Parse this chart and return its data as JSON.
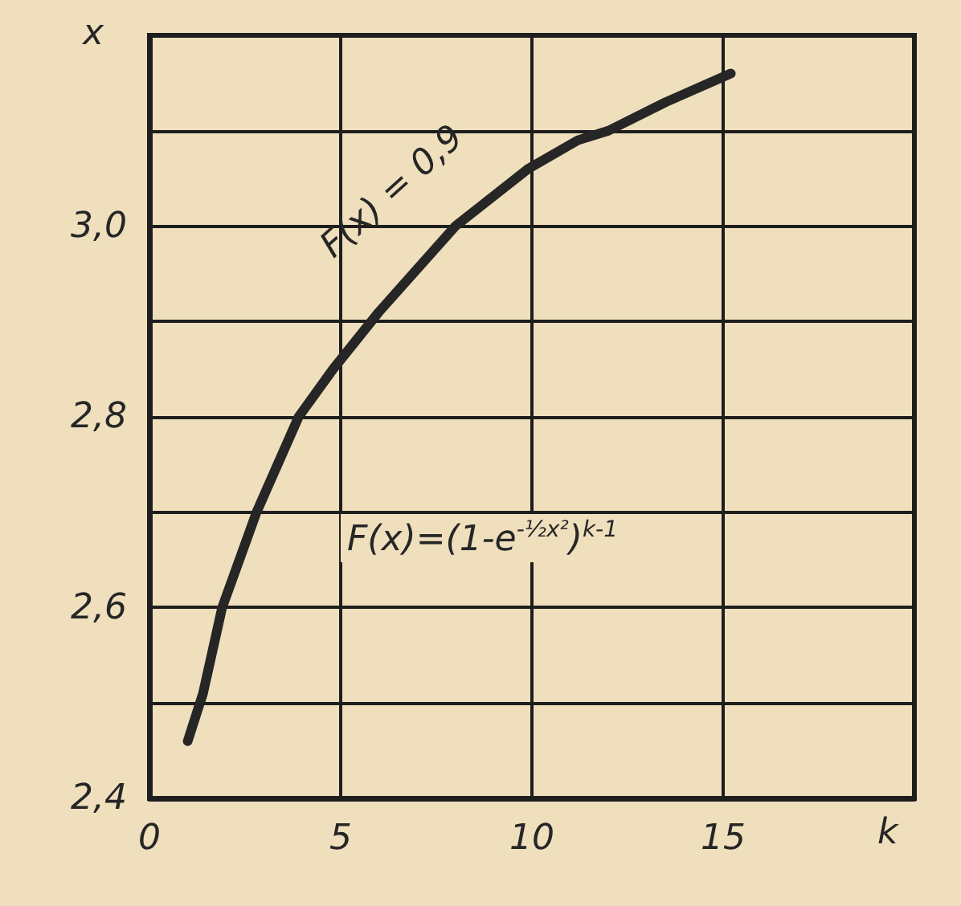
{
  "chart_data": {
    "type": "line",
    "xlabel": "k",
    "ylabel": "x",
    "x": [
      1.0,
      1.4,
      1.9,
      2.8,
      3.9,
      4.8,
      6.0,
      8.0,
      9.9,
      11.2,
      12.0,
      13.5,
      15.2
    ],
    "series": [
      {
        "color": "#262626",
        "values": [
          2.46,
          2.51,
          2.6,
          2.7,
          2.8,
          2.85,
          2.91,
          3.0,
          3.06,
          3.09,
          3.1,
          3.13,
          3.16
        ]
      }
    ],
    "xlim": [
      0,
      20
    ],
    "xticks": [
      0,
      5,
      10,
      15
    ],
    "ylim": [
      2.4,
      3.2
    ],
    "yticks": [
      {
        "value": 2.4,
        "label": "2,4"
      },
      {
        "value": 2.5,
        "label": null
      },
      {
        "value": 2.6,
        "label": "2,6"
      },
      {
        "value": 2.7,
        "label": null
      },
      {
        "value": 2.8,
        "label": "2,8"
      },
      {
        "value": 2.9,
        "label": null
      },
      {
        "value": 3.0,
        "label": "3,0"
      },
      {
        "value": 3.1,
        "label": null
      }
    ],
    "grid": true,
    "marker": "none",
    "line_style": "solid",
    "annotations": [
      "F(x) = 0,9",
      "F(x)=(1-e$^{-½x²}$)$^{k-1}$"
    ]
  }
}
